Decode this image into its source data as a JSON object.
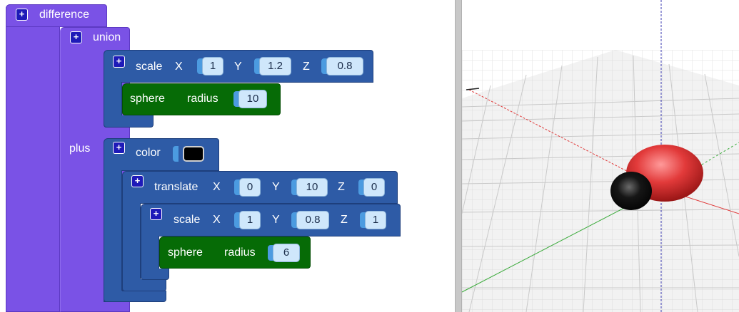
{
  "blocks": {
    "difference": {
      "label": "difference"
    },
    "union": {
      "label": "union",
      "plus_label": "plus"
    },
    "scale1": {
      "label": "scale",
      "x_label": "X",
      "y_label": "Y",
      "z_label": "Z",
      "x": "1",
      "y": "1.2",
      "z": "0.8"
    },
    "sphere1": {
      "label": "sphere",
      "radius_label": "radius",
      "radius": "10"
    },
    "color": {
      "label": "color",
      "value": "#000000"
    },
    "translate": {
      "label": "translate",
      "x_label": "X",
      "y_label": "Y",
      "z_label": "Z",
      "x": "0",
      "y": "10",
      "z": "0"
    },
    "scale2": {
      "label": "scale",
      "x_label": "X",
      "y_label": "Y",
      "z_label": "Z",
      "x": "1",
      "y": "0.8",
      "z": "1"
    },
    "sphere2": {
      "label": "sphere",
      "radius_label": "radius",
      "radius": "6"
    }
  },
  "icons": {
    "expand": "plus-icon"
  },
  "colors": {
    "set_block": "#7a52e6",
    "transform_block": "#2e5ba6",
    "primitive_block": "#066b06",
    "field_bg": "#cfe7fb",
    "x_axis": "#e03a3a",
    "y_axis": "#3aaa3a",
    "z_axis": "#3a3ab0"
  }
}
